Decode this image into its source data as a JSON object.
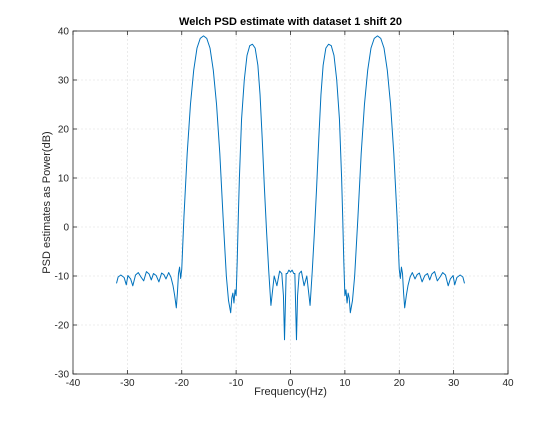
{
  "chart_data": {
    "type": "line",
    "title": "Welch PSD estimate with dataset 1 shift 20",
    "xlabel": "Frequency(Hz)",
    "ylabel": "PSD estimates as Power(dB)",
    "xlim": [
      -40,
      40
    ],
    "ylim": [
      -30,
      40
    ],
    "xticks": [
      -40,
      -30,
      -20,
      -10,
      0,
      10,
      20,
      30,
      40
    ],
    "yticks": [
      -30,
      -20,
      -10,
      0,
      10,
      20,
      30,
      40
    ],
    "grid": true,
    "legend": "none",
    "line_color": "#0072BD",
    "series": [
      {
        "x": [
          -32,
          -31.7,
          -31.2,
          -30.6,
          -30.2,
          -29.9,
          -29.4,
          -29,
          -28.5,
          -28,
          -27.5,
          -27,
          -26.5,
          -26,
          -25.6,
          -25.2,
          -24.7,
          -24.2,
          -23.7,
          -23.3,
          -22.9,
          -22.4,
          -22,
          -21.6,
          -21.3,
          -21,
          -20.8,
          -20.6,
          -20.4,
          -20.2,
          -20,
          -19.6,
          -19,
          -18.4,
          -17.8,
          -17.2,
          -16.6,
          -16,
          -15.4,
          -14.8,
          -14.2,
          -13.6,
          -13,
          -12.4,
          -11.8,
          -11.4,
          -11,
          -10.8,
          -10.6,
          -10.4,
          -10.2,
          -10,
          -9.8,
          -9.6,
          -9.4,
          -9,
          -8.5,
          -8,
          -7.5,
          -7,
          -6.5,
          -6,
          -5.6,
          -5.2,
          -4.8,
          -4.4,
          -4,
          -3.6,
          -3,
          -2.5,
          -2,
          -1.6,
          -1.3,
          -1.1,
          -0.8,
          -0.6,
          -0.3,
          0,
          0.3,
          0.6,
          0.8,
          1.1,
          1.3,
          1.6,
          2,
          2.5,
          3,
          3.6,
          4,
          4.4,
          4.8,
          5.2,
          5.6,
          6,
          6.5,
          7,
          7.5,
          8,
          8.5,
          9,
          9.4,
          9.6,
          9.8,
          10,
          10.2,
          10.4,
          10.6,
          10.8,
          11,
          11.4,
          11.8,
          12.4,
          13,
          13.6,
          14.2,
          14.8,
          15.4,
          16,
          16.6,
          17.2,
          17.8,
          18.4,
          19,
          19.6,
          20,
          20.2,
          20.4,
          20.6,
          20.8,
          21,
          21.3,
          21.6,
          22,
          22.4,
          22.9,
          23.3,
          23.7,
          24.2,
          24.7,
          25.2,
          25.6,
          26,
          26.5,
          27,
          27.5,
          28,
          28.5,
          29,
          29.4,
          29.9,
          30.2,
          30.6,
          31.2,
          31.7,
          32
        ],
        "y": [
          -11.5,
          -10.2,
          -9.8,
          -10.3,
          -11.8,
          -9.9,
          -10.6,
          -12,
          -9.8,
          -9.3,
          -10.2,
          -11,
          -9.1,
          -9.6,
          -10.8,
          -9.5,
          -9.9,
          -11.2,
          -9.4,
          -9.7,
          -10.6,
          -9.3,
          -10.2,
          -12,
          -14,
          -16.5,
          -13.5,
          -9.5,
          -8.2,
          -10.5,
          -8.6,
          2,
          15,
          25,
          32,
          36.5,
          38.5,
          39,
          38.5,
          36.5,
          32,
          25,
          15,
          2,
          -10,
          -15,
          -17.5,
          -14.5,
          -13.5,
          -15.5,
          -12.8,
          -14,
          -7,
          2,
          10,
          22,
          30,
          35,
          37,
          37.3,
          36.5,
          33,
          27,
          18,
          8,
          -1,
          -9,
          -16,
          -10,
          -12,
          -9,
          -9.5,
          -14,
          -23,
          -9.5,
          -9.5,
          -8.8,
          -9.2,
          -8.8,
          -9.5,
          -9.5,
          -23,
          -14,
          -9.5,
          -9,
          -12,
          -10,
          -16,
          -9,
          -1,
          8,
          18,
          27,
          33,
          36.5,
          37.3,
          37,
          35,
          30,
          22,
          10,
          2,
          -7,
          -14,
          -12.8,
          -15.5,
          -13.5,
          -14.5,
          -17.5,
          -15,
          -10,
          2,
          15,
          25,
          32,
          36.5,
          38.5,
          39,
          38.5,
          36.5,
          32,
          25,
          15,
          2,
          -8.6,
          -10.5,
          -8.2,
          -9.5,
          -13.5,
          -16.5,
          -14,
          -12,
          -10.2,
          -9.3,
          -10.6,
          -9.7,
          -9.4,
          -11.2,
          -9.9,
          -9.5,
          -10.8,
          -9.6,
          -9.1,
          -11,
          -10.2,
          -9.3,
          -9.8,
          -12,
          -10.6,
          -9.9,
          -11.8,
          -10.3,
          -9.8,
          -10.2,
          -11.5
        ]
      }
    ]
  }
}
